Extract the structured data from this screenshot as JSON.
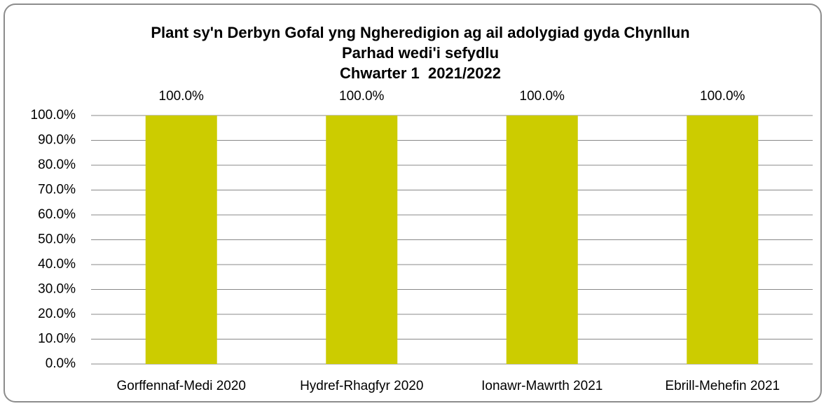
{
  "chart_data": {
    "type": "bar",
    "title": [
      "Plant sy'n Derbyn Gofal yng Ngheredigion ag ail adolygiad gyda Chynllun",
      "Parhad wedi'i sefydlu",
      "Chwarter 1  2021/2022"
    ],
    "categories": [
      "Gorffennaf-Medi 2020",
      "Hydref-Rhagfyr 2020",
      "Ionawr-Mawrth 2021",
      "Ebrill-Mehefin 2021"
    ],
    "values": [
      100,
      100,
      100,
      100
    ],
    "value_labels": [
      "100.0%",
      "100.0%",
      "100.0%",
      "100.0%"
    ],
    "color": "#cccc00",
    "ylim": [
      0,
      100
    ],
    "yticks": [
      {
        "value": 0,
        "label": "0.0%"
      },
      {
        "value": 10,
        "label": "10.0%"
      },
      {
        "value": 20,
        "label": "20.0%"
      },
      {
        "value": 30,
        "label": "30.0%"
      },
      {
        "value": 40,
        "label": "40.0%"
      },
      {
        "value": 50,
        "label": "50.0%"
      },
      {
        "value": 60,
        "label": "60.0%"
      },
      {
        "value": 70,
        "label": "70.0%"
      },
      {
        "value": 80,
        "label": "80.0%"
      },
      {
        "value": 90,
        "label": "90.0%"
      },
      {
        "value": 100,
        "label": "100.0%"
      }
    ],
    "grid": true
  }
}
